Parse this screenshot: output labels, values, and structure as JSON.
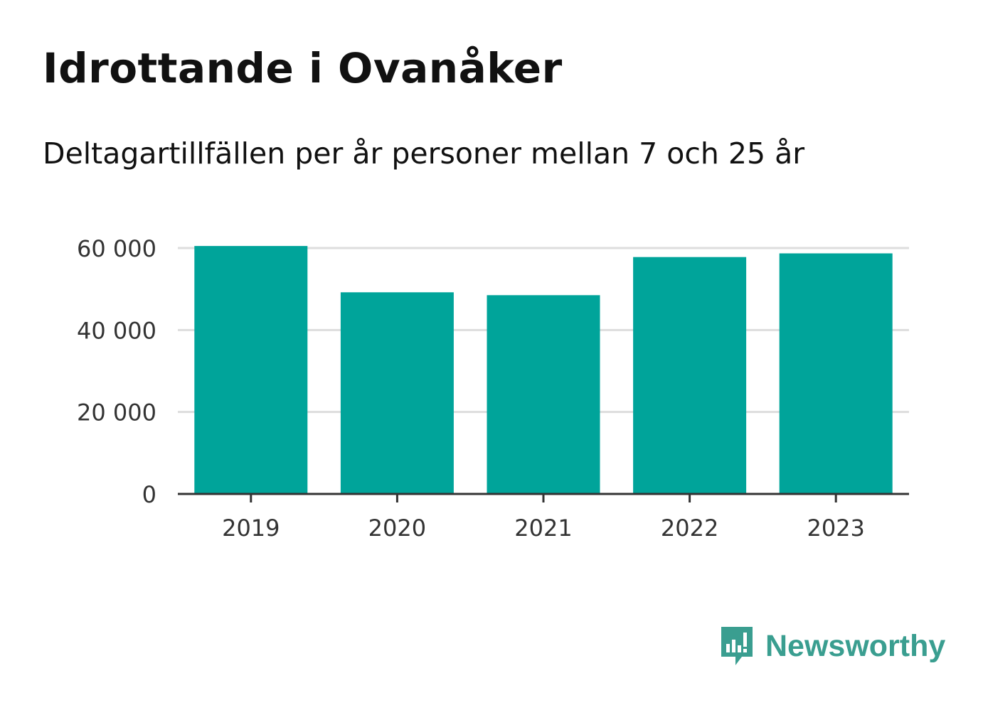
{
  "header": {
    "title": "Idrottande i Ovanåker",
    "subtitle": "Deltagartillfällen per år personer mellan 7 och 25 år"
  },
  "brand": {
    "name": "Newsworthy",
    "icon": "newsworthy-logo-icon",
    "color": "#3a9e90"
  },
  "chart_data": {
    "type": "bar",
    "title": "Idrottande i Ovanåker",
    "subtitle": "Deltagartillfällen per år personer mellan 7 och 25 år",
    "categories": [
      "2019",
      "2020",
      "2021",
      "2022",
      "2023"
    ],
    "values": [
      60500,
      49200,
      48500,
      57800,
      58700
    ],
    "ylim": [
      0,
      60000
    ],
    "yticks": [
      0,
      20000,
      40000,
      60000
    ],
    "ytick_labels": [
      "0",
      "20 000",
      "40 000",
      "60 000"
    ],
    "xlabel": "",
    "ylabel": "",
    "grid": true,
    "legend": "none",
    "bar_color": "#00a49a",
    "grid_color": "#dddddd",
    "axis_color": "#333333"
  }
}
